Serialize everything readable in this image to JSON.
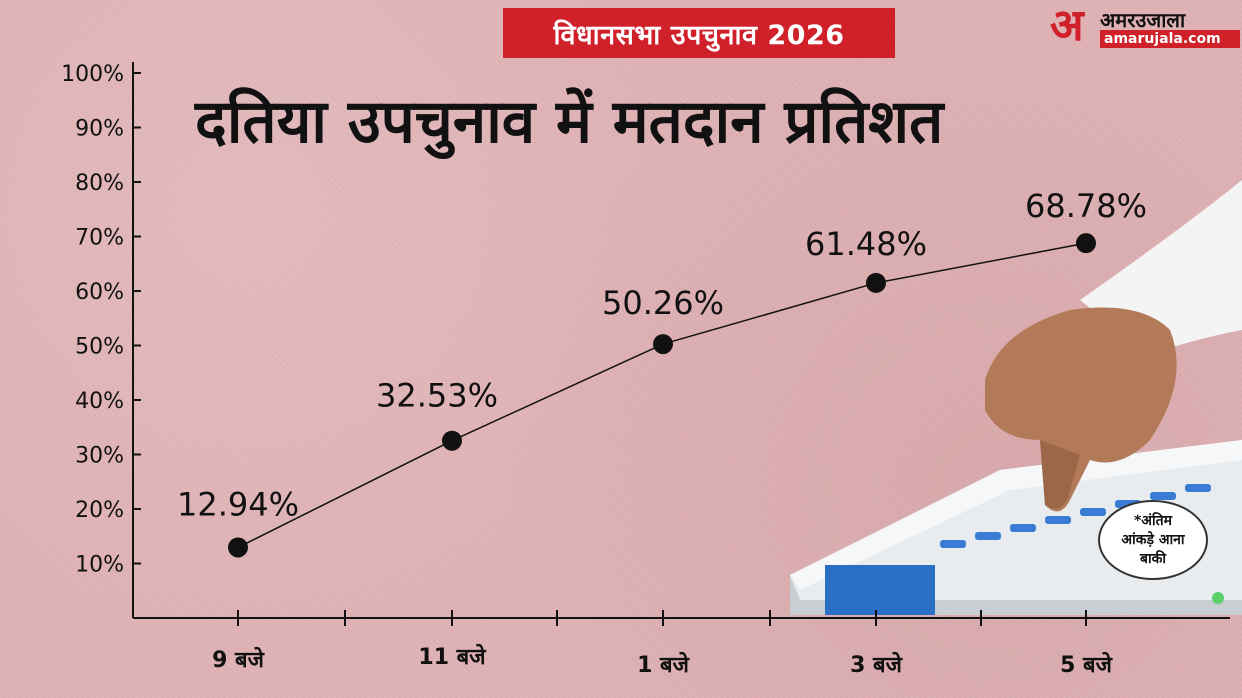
{
  "banner": "विधानसभा उपचुनाव 2026",
  "logo": {
    "name": "अमरउजाला",
    "url": "amarujala.com",
    "mark": "अ"
  },
  "note": "*अंतिम\nआंकड़े आना\nबाकी",
  "chart_data": {
    "type": "line",
    "title": "दतिया  उपचुनाव में मतदान प्रतिशत",
    "categories": [
      "9 बजे",
      "11 बजे",
      "1 बजे",
      "3 बजे",
      "5 बजे"
    ],
    "values": [
      12.94,
      32.53,
      50.26,
      61.48,
      68.78
    ],
    "data_labels": [
      "12.94%",
      "32.53%",
      "50.26%",
      "61.48%",
      "68.78%"
    ],
    "yticks": [
      "10%",
      "20%",
      "30%",
      "40%",
      "50%",
      "60%",
      "70%",
      "80%",
      "90%",
      "100%"
    ],
    "ytick_values": [
      10,
      20,
      30,
      40,
      50,
      60,
      70,
      80,
      90,
      100
    ],
    "ylim": [
      0,
      100
    ],
    "grid": false,
    "colors": {
      "line": "#111111",
      "marker": "#111111"
    }
  }
}
